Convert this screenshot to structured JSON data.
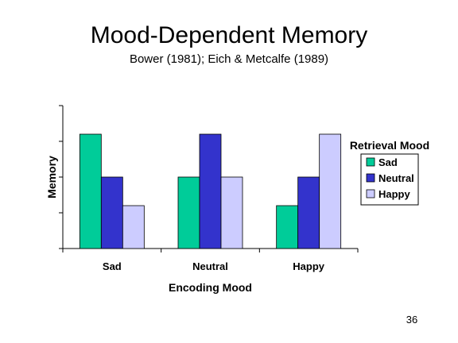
{
  "slide": {
    "title": "Mood-Dependent Memory",
    "subtitle": "Bower (1981); Eich & Metcalfe (1989)",
    "page_number": "36"
  },
  "chart_data": {
    "type": "bar",
    "xlabel": "Encoding Mood",
    "ylabel": "Memory",
    "categories": [
      "Sad",
      "Neutral",
      "Happy"
    ],
    "legend_title": "Retrieval Mood",
    "legend_position": "right",
    "grid": false,
    "ylim": [
      0,
      4
    ],
    "series": [
      {
        "name": "Sad",
        "color": "#00CC99",
        "values": [
          3.2,
          2.0,
          1.2
        ]
      },
      {
        "name": "Neutral",
        "color": "#3333CC",
        "values": [
          2.0,
          3.2,
          2.0
        ]
      },
      {
        "name": "Happy",
        "color": "#CCCCFF",
        "values": [
          1.2,
          2.0,
          3.2
        ]
      }
    ]
  }
}
